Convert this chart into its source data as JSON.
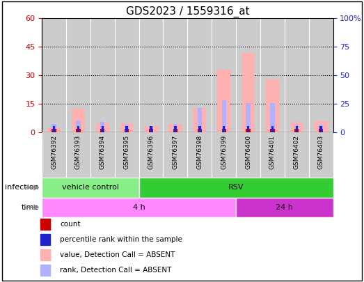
{
  "title": "GDS2023 / 1559316_at",
  "samples": [
    "GSM76392",
    "GSM76393",
    "GSM76394",
    "GSM76395",
    "GSM76396",
    "GSM76397",
    "GSM76398",
    "GSM76399",
    "GSM76400",
    "GSM76401",
    "GSM76402",
    "GSM76403"
  ],
  "absent_value": [
    2.5,
    12.5,
    5.0,
    5.0,
    3.5,
    4.5,
    13.0,
    33.0,
    42.0,
    28.0,
    5.5,
    6.0
  ],
  "absent_rank": [
    4.5,
    6.5,
    5.5,
    4.0,
    3.5,
    4.5,
    13.0,
    17.0,
    15.5,
    15.5,
    4.0,
    4.0
  ],
  "count_values": [
    2.0,
    2.0,
    2.0,
    2.0,
    2.0,
    2.0,
    2.0,
    2.0,
    2.0,
    2.0,
    2.0,
    2.0
  ],
  "rank_values": [
    3.5,
    3.5,
    3.5,
    3.5,
    3.5,
    3.5,
    3.5,
    3.5,
    3.5,
    3.5,
    3.5,
    3.5
  ],
  "color_count": "#cc0000",
  "color_rank": "#2222cc",
  "color_absent_value": "#ffb0b0",
  "color_absent_rank": "#b0b0ff",
  "left_ylim": [
    0,
    60
  ],
  "right_ylim": [
    0,
    100
  ],
  "left_yticks": [
    0,
    15,
    30,
    45,
    60
  ],
  "right_yticks": [
    0,
    25,
    50,
    75,
    100
  ],
  "right_yticklabels": [
    "0",
    "25",
    "50",
    "75",
    "100%"
  ],
  "infection_groups": [
    {
      "label": "vehicle control",
      "start": 0,
      "end": 4,
      "color": "#88ee88"
    },
    {
      "label": "RSV",
      "start": 4,
      "end": 12,
      "color": "#33cc33"
    }
  ],
  "time_groups": [
    {
      "label": "4 h",
      "start": 0,
      "end": 8,
      "color": "#ff88ff"
    },
    {
      "label": "24 h",
      "start": 8,
      "end": 12,
      "color": "#cc33cc"
    }
  ],
  "legend_items": [
    {
      "label": "count",
      "color": "#cc0000"
    },
    {
      "label": "percentile rank within the sample",
      "color": "#2222cc"
    },
    {
      "label": "value, Detection Call = ABSENT",
      "color": "#ffb0b0"
    },
    {
      "label": "rank, Detection Call = ABSENT",
      "color": "#b0b0ff"
    }
  ],
  "infection_label": "infection",
  "time_label": "time",
  "bg_color": "#cccccc",
  "title_fontsize": 11
}
